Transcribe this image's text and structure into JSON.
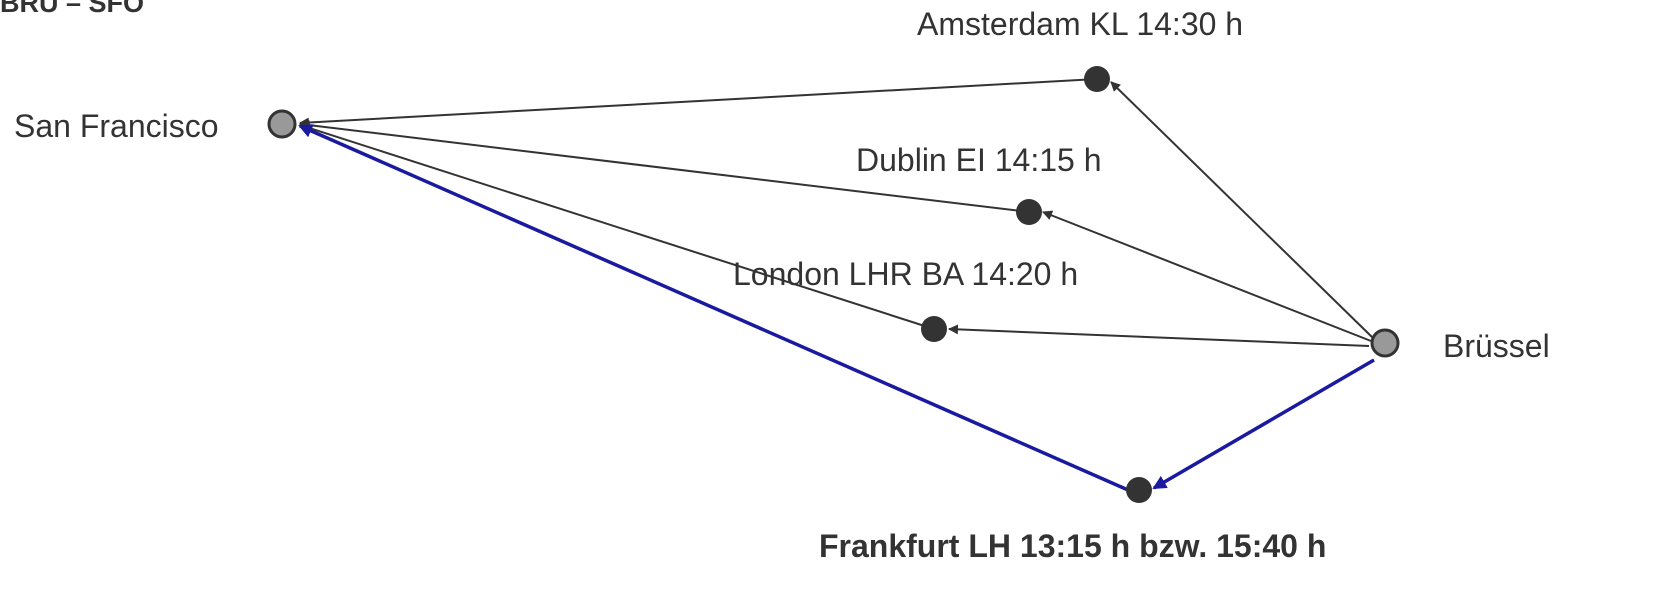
{
  "title": "BRU – SFO",
  "nodes": {
    "sfo": {
      "label": "San Francisco"
    },
    "bru": {
      "label": "Brüssel"
    },
    "ams": {
      "label": "Amsterdam  KL 14:30 h"
    },
    "dub": {
      "label": "Dublin  EI 14:15 h"
    },
    "lhr": {
      "label": "London LHR BA 14:20 h"
    },
    "fra": {
      "label": "Frankfurt LH 13:15 h bzw. 15:40 h"
    }
  },
  "routes": [
    {
      "via": "ams",
      "highlighted": false
    },
    {
      "via": "dub",
      "highlighted": false
    },
    {
      "via": "lhr",
      "highlighted": false
    },
    {
      "via": "fra",
      "highlighted": true
    }
  ],
  "colors": {
    "route": "#333333",
    "highlight": "#1a1aa0",
    "endpoint_fill": "#999999",
    "hub_fill": "#333333",
    "text": "#333333"
  }
}
